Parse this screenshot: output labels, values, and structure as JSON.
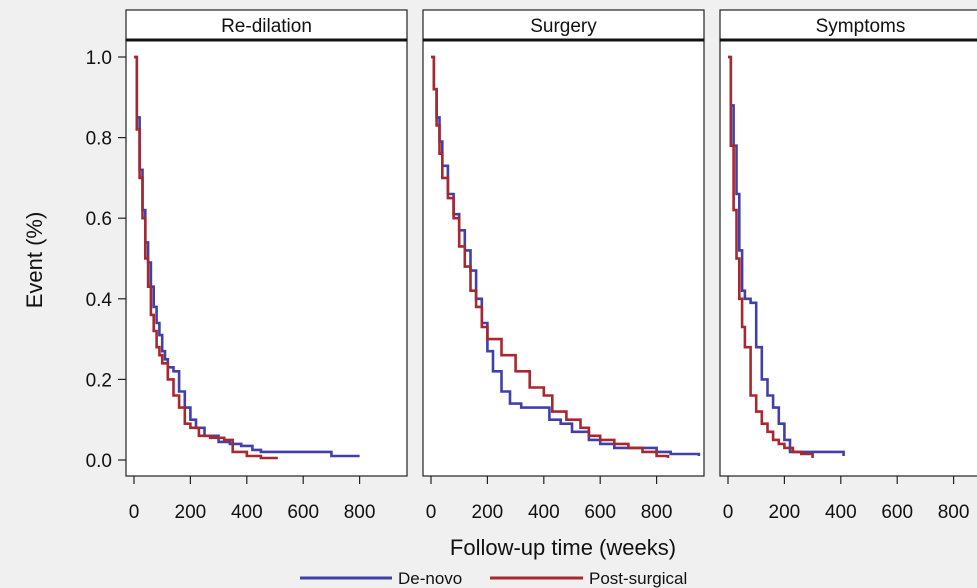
{
  "chart_data": {
    "type": "line",
    "ylabel": "Event (%)",
    "xlabel": "Follow-up time (weeks)",
    "ylim": [
      0,
      1.0
    ],
    "yticks": [
      0.0,
      0.2,
      0.4,
      0.6,
      0.8,
      1.0
    ],
    "xlim": [
      -30,
      950
    ],
    "xticks": [
      0,
      200,
      400,
      600,
      800
    ],
    "grid": false,
    "legend_position": "bottom",
    "legend": [
      {
        "name": "De-novo",
        "color": "#4040a8"
      },
      {
        "name": "Post-surgical",
        "color": "#a82830"
      }
    ],
    "panels": [
      {
        "title": "Re-dilation",
        "series": [
          {
            "name": "De-novo",
            "x": [
              0,
              10,
              20,
              30,
              40,
              50,
              60,
              70,
              80,
              90,
              100,
              110,
              120,
              140,
              160,
              180,
              200,
              220,
              250,
              300,
              340,
              380,
              420,
              450,
              500,
              550,
              600,
              670,
              700,
              800
            ],
            "y": [
              1.0,
              0.85,
              0.72,
              0.62,
              0.54,
              0.49,
              0.43,
              0.38,
              0.34,
              0.31,
              0.27,
              0.25,
              0.23,
              0.22,
              0.17,
              0.13,
              0.1,
              0.08,
              0.06,
              0.045,
              0.04,
              0.035,
              0.025,
              0.02,
              0.02,
              0.02,
              0.02,
              0.02,
              0.01,
              0.01
            ]
          },
          {
            "name": "Post-surgical",
            "x": [
              0,
              10,
              20,
              30,
              40,
              50,
              60,
              70,
              80,
              90,
              100,
              120,
              140,
              160,
              180,
              200,
              230,
              270,
              320,
              350,
              400,
              450,
              510
            ],
            "y": [
              1.0,
              0.82,
              0.7,
              0.6,
              0.5,
              0.43,
              0.36,
              0.32,
              0.28,
              0.26,
              0.24,
              0.2,
              0.16,
              0.13,
              0.09,
              0.08,
              0.06,
              0.055,
              0.05,
              0.02,
              0.01,
              0.005,
              0.005
            ]
          }
        ]
      },
      {
        "title": "Surgery",
        "series": [
          {
            "name": "De-novo",
            "x": [
              0,
              10,
              20,
              30,
              40,
              60,
              80,
              100,
              120,
              140,
              160,
              180,
              200,
              220,
              250,
              280,
              320,
              380,
              420,
              460,
              500,
              560,
              600,
              650,
              700,
              750,
              800,
              850,
              900,
              950
            ],
            "y": [
              1.0,
              0.92,
              0.85,
              0.79,
              0.73,
              0.66,
              0.61,
              0.57,
              0.52,
              0.47,
              0.4,
              0.34,
              0.27,
              0.22,
              0.17,
              0.14,
              0.13,
              0.13,
              0.1,
              0.09,
              0.07,
              0.05,
              0.04,
              0.03,
              0.03,
              0.03,
              0.02,
              0.015,
              0.015,
              0.01
            ]
          },
          {
            "name": "Post-surgical",
            "x": [
              0,
              10,
              20,
              30,
              40,
              60,
              80,
              100,
              120,
              140,
              160,
              180,
              200,
              250,
              300,
              350,
              400,
              430,
              480,
              530,
              560,
              600,
              650,
              700,
              750,
              800,
              840
            ],
            "y": [
              1.0,
              0.92,
              0.83,
              0.76,
              0.7,
              0.65,
              0.6,
              0.53,
              0.48,
              0.42,
              0.38,
              0.33,
              0.3,
              0.26,
              0.22,
              0.18,
              0.16,
              0.12,
              0.1,
              0.08,
              0.06,
              0.05,
              0.04,
              0.03,
              0.02,
              0.01,
              0.005
            ]
          }
        ]
      },
      {
        "title": "Symptoms",
        "series": [
          {
            "name": "De-novo",
            "x": [
              0,
              10,
              20,
              30,
              40,
              50,
              60,
              80,
              100,
              120,
              140,
              160,
              180,
              200,
              220,
              250,
              300,
              350,
              410
            ],
            "y": [
              1.0,
              0.88,
              0.78,
              0.66,
              0.52,
              0.42,
              0.4,
              0.39,
              0.28,
              0.2,
              0.16,
              0.13,
              0.09,
              0.05,
              0.02,
              0.02,
              0.02,
              0.02,
              0.01
            ]
          },
          {
            "name": "Post-surgical",
            "x": [
              0,
              10,
              20,
              30,
              40,
              50,
              60,
              80,
              100,
              120,
              140,
              160,
              180,
              200,
              230,
              260,
              300
            ],
            "y": [
              1.0,
              0.78,
              0.62,
              0.5,
              0.4,
              0.33,
              0.28,
              0.16,
              0.12,
              0.09,
              0.07,
              0.05,
              0.04,
              0.03,
              0.02,
              0.015,
              0.005
            ]
          }
        ]
      }
    ]
  }
}
